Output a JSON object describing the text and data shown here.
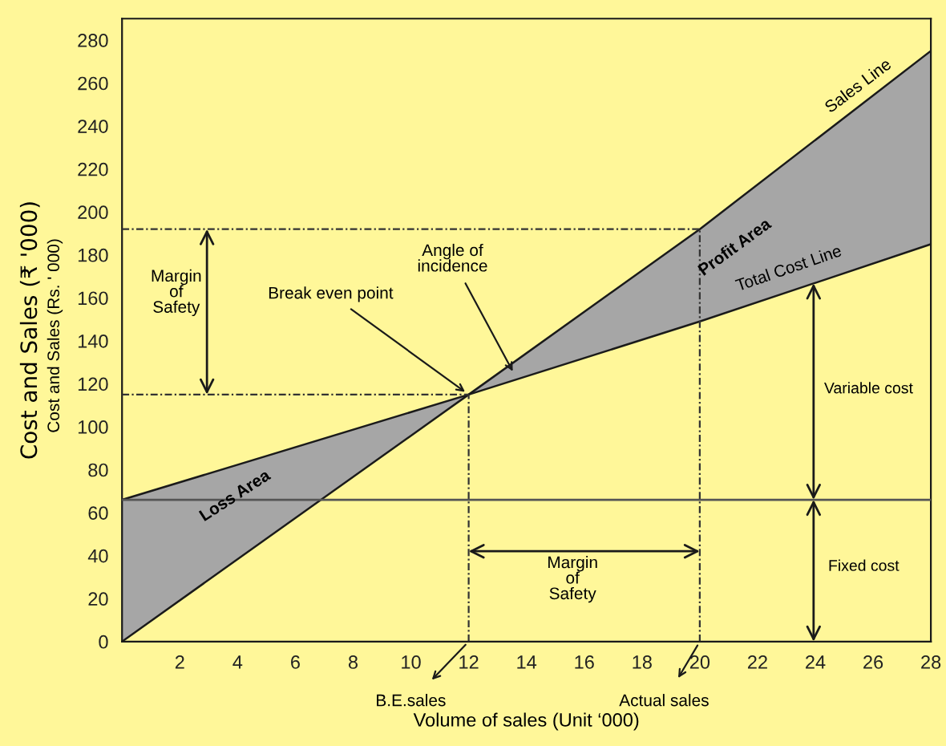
{
  "chart_data": {
    "type": "line",
    "xlabel": "Volume of sales (Unit ‘000)",
    "ylabel": "Cost and Sales (₹ '000)",
    "xlim": [
      0,
      28
    ],
    "xticks": [
      2,
      4,
      6,
      8,
      10,
      12,
      14,
      16,
      18,
      20,
      22,
      24,
      26,
      28
    ],
    "ylim": [
      0,
      290
    ],
    "yticks": [
      0,
      20,
      40,
      60,
      80,
      100,
      120,
      140,
      160,
      180,
      200,
      220,
      240,
      260,
      280
    ],
    "series": [
      {
        "color": "#1a1a1a",
        "x": [
          0,
          12,
          20,
          28
        ],
        "values": [
          0,
          115,
          192,
          275
        ],
        "lower": [
          66,
          115,
          149,
          185
        ],
        "upper": [
          0,
          115,
          192,
          275
        ]
      },
      {
        "color": "#1a1a1a",
        "x": [
          0,
          12,
          20,
          28
        ],
        "values": [
          66,
          115,
          149,
          185
        ]
      },
      {
        "color": "#333333",
        "line_style": "dotted",
        "x": [
          0,
          20
        ],
        "values": [
          192,
          192
        ]
      },
      {
        "color": "#333333",
        "line_style": "dotted",
        "x": [
          0,
          12
        ],
        "values": [
          115,
          115
        ]
      },
      {
        "color": "#333333",
        "line_style": "dotted",
        "x": [
          12,
          12
        ],
        "values": [
          0,
          115
        ]
      },
      {
        "color": "#333333",
        "line_style": "dotted",
        "x": [
          20,
          20
        ],
        "values": [
          0,
          192
        ]
      }
    ],
    "ref_lines": [
      {
        "axis": "y",
        "value": 66,
        "color": "#555555"
      }
    ],
    "annotations": [
      {
        "text": "Sales Line",
        "x": 25.5,
        "y": 249
      },
      "Profit Area",
      {
        "text": "Total Cost Line",
        "x": 23.4,
        "y": 164
      },
      "Loss Area",
      {
        "text": "Break even point",
        "x": 12,
        "y": 115
      },
      {
        "text": "Angle of\nincidence",
        "x": 13.6,
        "y": 124
      },
      "Margin\nof\nSafety",
      "Margin\nof\nSafety",
      "Variable cost",
      "Fixed cost",
      {
        "text": "B.E.sales",
        "x": 12,
        "y": 0
      },
      {
        "text": "Actual sales",
        "x": 20,
        "y": 0
      },
      "Cost and Sales (Rs. ' 000)"
    ],
    "legend": false,
    "grid": false,
    "marker": "none"
  }
}
